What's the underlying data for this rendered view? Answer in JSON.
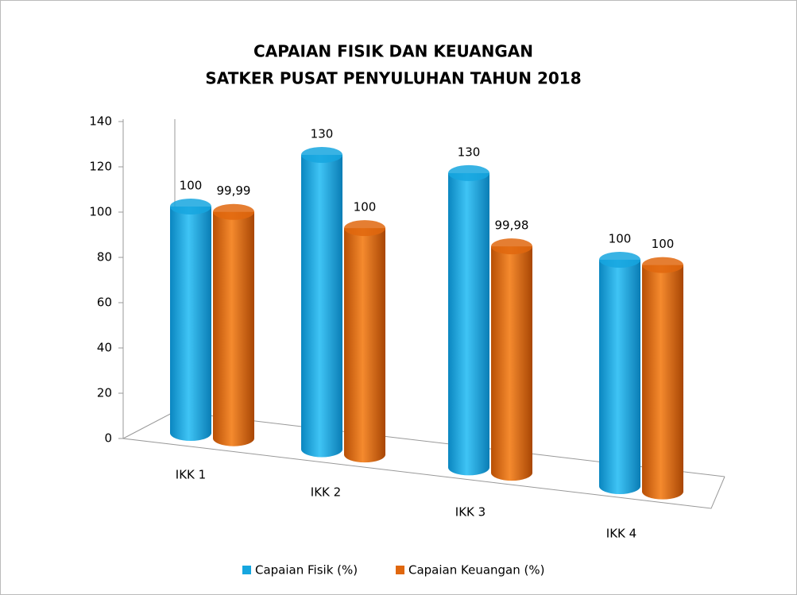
{
  "chart_data": {
    "type": "bar3d",
    "title": [
      "CAPAIAN FISIK DAN KEUANGAN",
      "SATKER PUSAT PENYULUHAN TAHUN 2018"
    ],
    "categories": [
      "IKK 1",
      "IKK 2",
      "IKK 3",
      "IKK 4"
    ],
    "series": [
      {
        "name": "Capaian Fisik (%)",
        "color": "#16a6df",
        "values": [
          100,
          130,
          130,
          100
        ],
        "value_labels": [
          "100",
          "130",
          "130",
          "100"
        ]
      },
      {
        "name": "Capaian Keuangan (%)",
        "color": "#e0670e",
        "values": [
          99.99,
          100,
          99.98,
          100
        ],
        "value_labels": [
          "99,99",
          "100",
          "99,98",
          "100"
        ]
      }
    ],
    "ylim": [
      0,
      140
    ],
    "yticks": [
      0,
      20,
      40,
      60,
      80,
      100,
      120,
      140
    ],
    "legend": "bottom"
  }
}
